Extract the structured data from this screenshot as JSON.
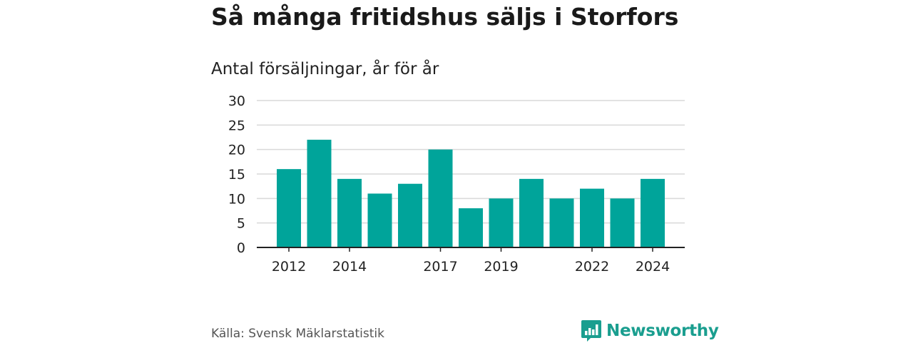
{
  "header": {
    "title": "Så många fritidshus säljs i Storfors",
    "subtitle": "Antal försäljningar, år för år"
  },
  "footer": {
    "source": "Källa: Svensk Mäklarstatistik",
    "brand": "Newsworthy",
    "brand_icon": "bar-chart-speech-bubble-icon"
  },
  "colors": {
    "bar": "#00a49a",
    "grid": "#d9d9d9",
    "axis": "#222222",
    "brand": "#1a9e8f"
  },
  "chart_data": {
    "type": "bar",
    "title": "Så många fritidshus säljs i Storfors",
    "subtitle": "Antal försäljningar, år för år",
    "categories": [
      2012,
      2013,
      2014,
      2015,
      2016,
      2017,
      2018,
      2019,
      2020,
      2021,
      2022,
      2023,
      2024
    ],
    "values": [
      16,
      22,
      14,
      11,
      13,
      20,
      8,
      10,
      14,
      10,
      12,
      10,
      14
    ],
    "x_tick_labels": [
      "2012",
      "2014",
      "2017",
      "2019",
      "2022",
      "2024"
    ],
    "y_ticks": [
      0,
      5,
      10,
      15,
      20,
      25,
      30
    ],
    "ylim": [
      0,
      30
    ],
    "grid": true,
    "legend": "none",
    "xlabel": "",
    "ylabel": ""
  }
}
